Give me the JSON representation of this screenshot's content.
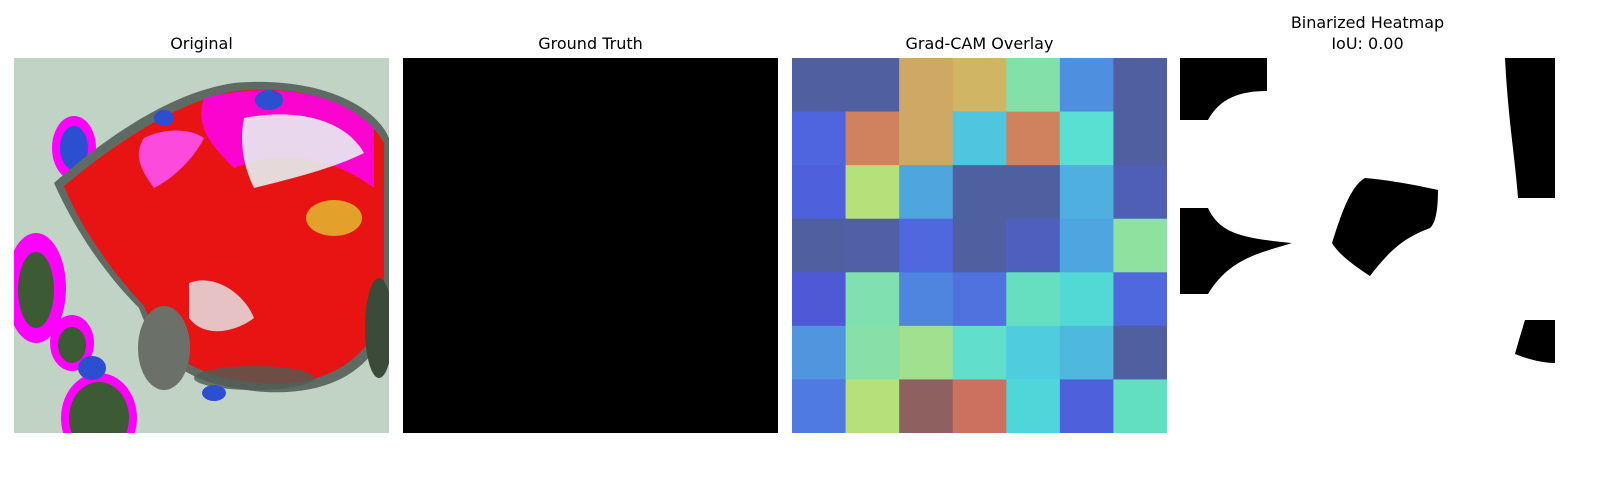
{
  "panels": [
    {
      "title": "Original"
    },
    {
      "title": "Ground Truth"
    },
    {
      "title": "Grad-CAM Overlay"
    },
    {
      "title": "Binarized Heatmap",
      "subtitle": "IoU: 0.00"
    }
  ],
  "gradcam_grid": [
    [
      "#4f5fa0",
      "#4f5fa0",
      "#cfa963",
      "#d0b565",
      "#83e0a9",
      "#4f8fe0",
      "#4f5fa0"
    ],
    [
      "#4f65dd",
      "#d0825f",
      "#cfa963",
      "#4fc5df",
      "#d0825f",
      "#5adfd3",
      "#4f5fa0"
    ],
    [
      "#4f60dd",
      "#b4e17a",
      "#4fa6df",
      "#4f60a0",
      "#4f60a0",
      "#4fb0df",
      "#4f5fb5"
    ],
    [
      "#4f60a0",
      "#4f60a6",
      "#4f68dd",
      "#4f60a0",
      "#4f5fbe",
      "#4fa5df",
      "#8fe1a0"
    ],
    [
      "#4f58d5",
      "#80e0b0",
      "#4f85df",
      "#4f72df",
      "#65dfc0",
      "#52d9d5",
      "#4f68dd"
    ],
    [
      "#4f96df",
      "#88e0a8",
      "#a0e08e",
      "#62dfcc",
      "#4fcddf",
      "#4fb8df",
      "#4f5fa0"
    ],
    [
      "#4f7adf",
      "#b4e17a",
      "#8f6060",
      "#cc7060",
      "#4fd6d8",
      "#4f60dd",
      "#62dfc0"
    ]
  ]
}
